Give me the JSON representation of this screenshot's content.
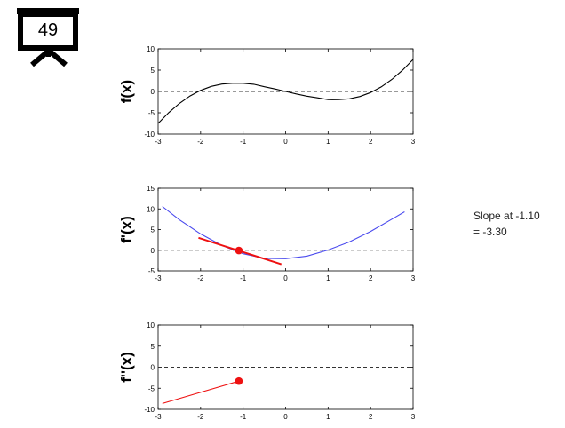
{
  "slide_number": "49",
  "icons": {
    "badge": "presentation-easel-icon"
  },
  "annotation": {
    "line1": "Slope at -1.10",
    "line2": "= -3.30"
  },
  "colors": {
    "f_curve": "#000000",
    "fprime_curve": "#4a4aee",
    "highlight": "#ee1111",
    "zero_line": "#333333"
  },
  "chart_data": [
    {
      "type": "line",
      "ylabel": "f(x)",
      "xlim": [
        -3,
        3
      ],
      "ylim": [
        -10,
        10
      ],
      "xticks": [
        "-3",
        "-2",
        "-1",
        "0",
        "1",
        "2",
        "3"
      ],
      "yticks": [
        "10",
        "5",
        "0",
        "-5",
        "-10"
      ],
      "zero_line": true,
      "series": [
        {
          "x": [
            -3,
            -2.75,
            -2.5,
            -2.25,
            -2,
            -1.75,
            -1.5,
            -1.25,
            -1.1,
            -1,
            -0.75,
            -0.5,
            -0.25,
            0,
            0.25,
            0.5,
            0.75,
            1,
            1.1,
            1.25,
            1.5,
            1.75,
            2,
            2.25,
            2.5,
            2.75,
            3
          ],
          "y": [
            -7.5,
            -4.95,
            -2.81,
            -1.07,
            0.26,
            1.19,
            1.73,
            1.91,
            1.94,
            1.92,
            1.68,
            1.11,
            0.59,
            0.0,
            -0.59,
            -1.11,
            -1.5,
            -1.92,
            -1.94,
            -1.91,
            -1.73,
            -1.19,
            -0.26,
            1.07,
            2.81,
            4.95,
            7.5
          ]
        }
      ]
    },
    {
      "type": "line",
      "ylabel": "f'(x)",
      "xlim": [
        -3,
        3
      ],
      "ylim": [
        -5,
        15
      ],
      "xticks": [
        "-3",
        "-2",
        "-1",
        "0",
        "1",
        "2",
        "3"
      ],
      "yticks": [
        "15",
        "10",
        "5",
        "0",
        "-5"
      ],
      "zero_line": true,
      "series": [
        {
          "x": [
            -2.9,
            -2.5,
            -2,
            -1.5,
            -1,
            -0.5,
            0,
            0.5,
            1,
            1.5,
            2,
            2.5,
            2.8
          ],
          "y": [
            10.6,
            7.38,
            3.94,
            1.14,
            -0.85,
            -1.97,
            -2.05,
            -1.43,
            0.05,
            2.02,
            4.55,
            7.52,
            9.3
          ]
        }
      ],
      "tangent": {
        "x": [
          -2.05,
          -0.1
        ],
        "y": [
          3.0,
          -3.4
        ]
      },
      "point": {
        "x": -1.1,
        "y": -0.06
      }
    },
    {
      "type": "line",
      "ylabel": "f''(x)",
      "xlim": [
        -3,
        3
      ],
      "ylim": [
        -10,
        10
      ],
      "xticks": [
        "-3",
        "-2",
        "-1",
        "0",
        "1",
        "2",
        "3"
      ],
      "yticks": [
        "10",
        "5",
        "0",
        "-5",
        "-10"
      ],
      "zero_line": true,
      "series": [
        {
          "x": [
            -2.9,
            -1.1
          ],
          "y": [
            -8.6,
            -3.3
          ]
        }
      ],
      "point": {
        "x": -1.1,
        "y": -3.3
      }
    }
  ]
}
